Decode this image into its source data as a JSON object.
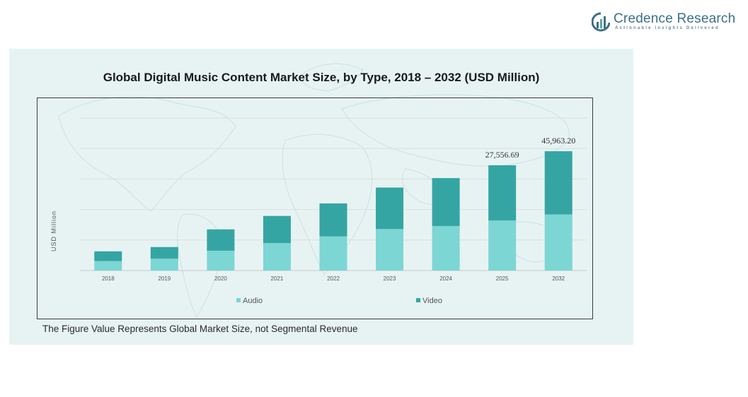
{
  "brand": {
    "name": "Credence Research",
    "tagline": "Actionable Insights Delivered",
    "name_color": "#3c6f86"
  },
  "footnote": "The Figure Value Represents Global Market Size, not Segmental Revenue",
  "chart_data": {
    "type": "bar",
    "stacked": true,
    "title": "Global Digital Music Content Market Size, by Type, 2018 – 2032 (USD Million)",
    "xlabel": "",
    "ylabel": "USD Million",
    "categories": [
      "2018",
      "2019",
      "2020",
      "2021",
      "2022",
      "2023",
      "2024",
      "2025",
      "2032"
    ],
    "series": [
      {
        "name": "Audio",
        "color": "#7cd6d4",
        "values": [
          3100,
          3900,
          6500,
          9000,
          11200,
          13600,
          14600,
          16400,
          18400
        ]
      },
      {
        "name": "Video",
        "color": "#35a5a3",
        "values": [
          3200,
          3800,
          7000,
          8900,
          10800,
          13600,
          15700,
          18100,
          20700
        ]
      }
    ],
    "data_labels": [
      {
        "category": "2025",
        "text": "27,556.69"
      },
      {
        "category": "2032",
        "text": "45,963.20"
      }
    ],
    "ylim": [
      0,
      50000
    ],
    "yticks": [
      0,
      10000,
      20000,
      30000,
      40000,
      50000
    ],
    "grid": true,
    "legend_position": "bottom"
  }
}
